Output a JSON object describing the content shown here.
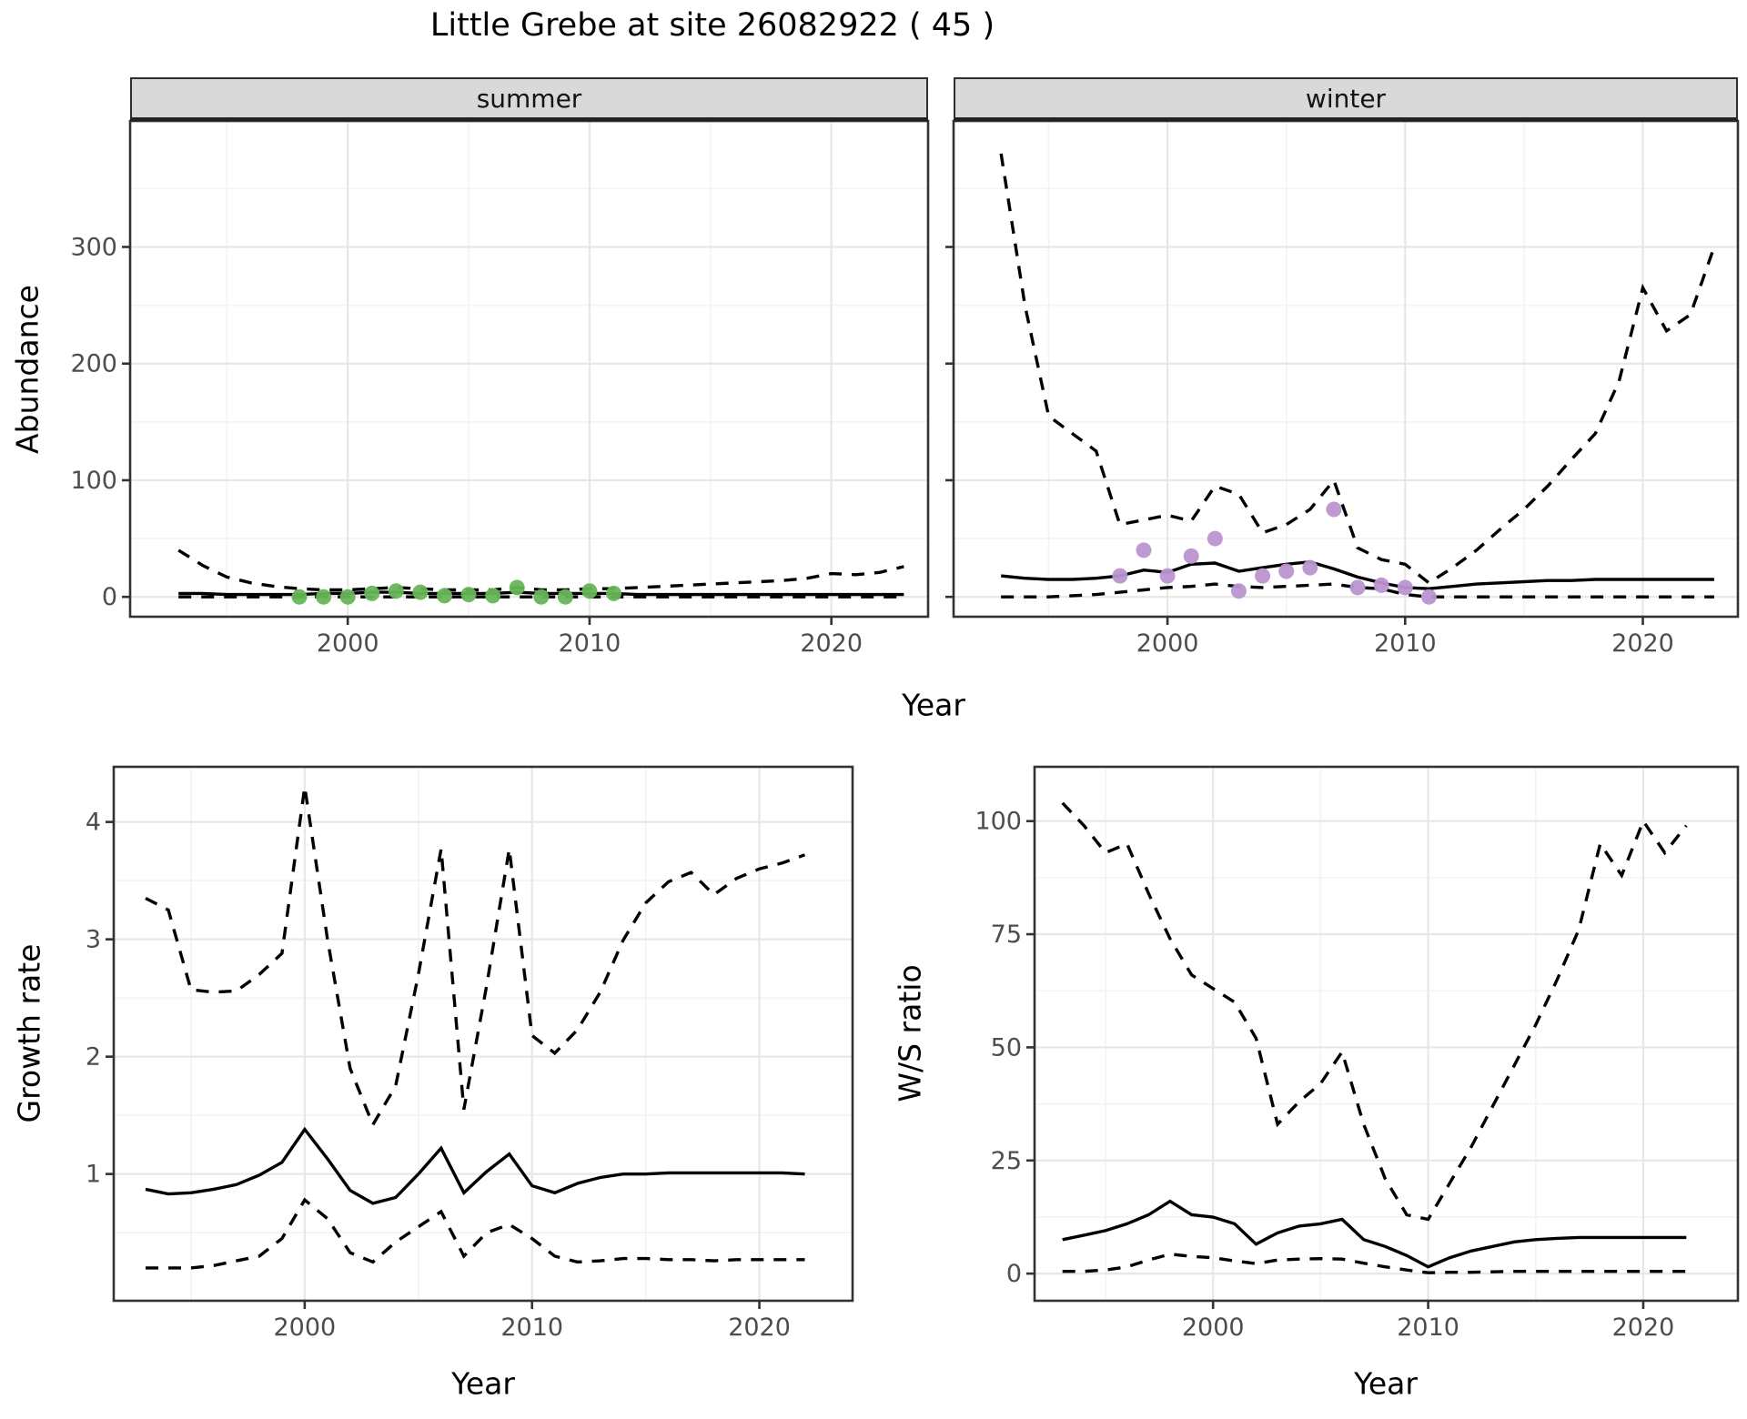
{
  "title": "Little Grebe at site 26082922 ( 45 )",
  "facets": {
    "summer_label": "summer",
    "winter_label": "winter"
  },
  "axis_titles": {
    "abundance": "Abundance",
    "growth": "Growth rate",
    "ws": "W/S ratio",
    "year_top": "Year",
    "year_bottom_left": "Year",
    "year_bottom_right": "Year"
  },
  "colors": {
    "summer_point": "#67b658",
    "winter_point": "#ba94d0",
    "line": "#000000",
    "strip_bg": "#d9d9d9",
    "grid_major": "#e7e7e7",
    "grid_minor": "#f3f3f3",
    "tick_label": "#4d4d4d",
    "panel_border": "#333333"
  },
  "chart_data": [
    {
      "id": "abundance-summer",
      "type": "line",
      "title": "summer",
      "xlabel": "Year",
      "ylabel": "Abundance",
      "xlim": [
        1991,
        2024
      ],
      "ylim": [
        -17,
        408
      ],
      "x_ticks": [
        2000,
        2010,
        2020
      ],
      "x_minor": [
        1995,
        2005,
        2015
      ],
      "y_ticks": [
        0,
        100,
        200,
        300
      ],
      "y_minor": [
        50,
        150,
        250,
        350
      ],
      "show_y_labels": true,
      "years": [
        1993,
        1994,
        1995,
        1996,
        1997,
        1998,
        1999,
        2000,
        2001,
        2002,
        2003,
        2004,
        2005,
        2006,
        2007,
        2008,
        2009,
        2010,
        2011,
        2012,
        2013,
        2014,
        2015,
        2016,
        2017,
        2018,
        2019,
        2020,
        2021,
        2022,
        2023
      ],
      "series": [
        {
          "name": "upper-ci",
          "style": "dashed",
          "values": [
            40,
            27,
            17,
            12,
            9,
            7,
            6,
            6,
            7,
            8,
            7,
            6,
            6,
            6,
            8,
            6,
            6,
            7,
            7,
            8,
            9,
            10,
            11,
            12,
            13,
            14,
            16,
            20,
            19,
            21,
            26
          ]
        },
        {
          "name": "fit",
          "style": "solid",
          "values": [
            3,
            3,
            2,
            2,
            2,
            2,
            3,
            3,
            4,
            4,
            3,
            3,
            3,
            3,
            4,
            3,
            3,
            3,
            3,
            2,
            2,
            2,
            2,
            2,
            2,
            2,
            2,
            2,
            2,
            2,
            2
          ]
        },
        {
          "name": "lower-ci",
          "style": "dashed",
          "values": [
            0,
            0,
            0,
            0,
            0,
            0,
            0,
            0,
            0,
            0,
            0,
            0,
            0,
            0,
            0,
            0,
            0,
            0,
            0,
            0,
            0,
            0,
            0,
            0,
            0,
            0,
            0,
            0,
            0,
            0,
            0
          ]
        }
      ],
      "points": {
        "name": "observed-summer",
        "color": "#67b658",
        "data": [
          [
            1998,
            0
          ],
          [
            1999,
            0
          ],
          [
            2000,
            0
          ],
          [
            2001,
            3
          ],
          [
            2002,
            5
          ],
          [
            2003,
            4
          ],
          [
            2004,
            1
          ],
          [
            2005,
            2
          ],
          [
            2006,
            1
          ],
          [
            2007,
            8
          ],
          [
            2008,
            0
          ],
          [
            2009,
            0
          ],
          [
            2010,
            5
          ],
          [
            2011,
            3
          ]
        ]
      }
    },
    {
      "id": "abundance-winter",
      "type": "line",
      "title": "winter",
      "xlabel": "Year",
      "ylabel": "Abundance",
      "xlim": [
        1991,
        2024
      ],
      "ylim": [
        -17,
        408
      ],
      "x_ticks": [
        2000,
        2010,
        2020
      ],
      "x_minor": [
        1995,
        2005,
        2015
      ],
      "y_ticks": [
        0,
        100,
        200,
        300
      ],
      "y_minor": [
        50,
        150,
        250,
        350
      ],
      "show_y_labels": false,
      "years": [
        1993,
        1994,
        1995,
        1996,
        1997,
        1998,
        1999,
        2000,
        2001,
        2002,
        2003,
        2004,
        2005,
        2006,
        2007,
        2008,
        2009,
        2010,
        2011,
        2012,
        2013,
        2014,
        2015,
        2016,
        2017,
        2018,
        2019,
        2020,
        2021,
        2022,
        2023
      ],
      "series": [
        {
          "name": "upper-ci",
          "style": "dashed",
          "values": [
            380,
            250,
            155,
            140,
            125,
            62,
            66,
            70,
            65,
            95,
            88,
            55,
            62,
            75,
            100,
            42,
            32,
            28,
            12,
            25,
            40,
            58,
            75,
            95,
            118,
            140,
            185,
            265,
            228,
            242,
            300
          ]
        },
        {
          "name": "fit",
          "style": "solid",
          "values": [
            18,
            16,
            15,
            15,
            16,
            18,
            23,
            21,
            28,
            29,
            22,
            25,
            28,
            30,
            24,
            17,
            12,
            8,
            7,
            9,
            11,
            12,
            13,
            14,
            14,
            15,
            15,
            15,
            15,
            15,
            15
          ]
        },
        {
          "name": "lower-ci",
          "style": "dashed",
          "values": [
            0,
            0,
            0,
            1,
            2,
            4,
            6,
            8,
            9,
            11,
            9,
            8,
            9,
            10,
            11,
            8,
            7,
            2,
            0,
            0,
            0,
            0,
            0,
            0,
            0,
            0,
            0,
            0,
            0,
            0,
            0
          ]
        }
      ],
      "points": {
        "name": "observed-winter",
        "color": "#ba94d0",
        "data": [
          [
            1998,
            18
          ],
          [
            1999,
            40
          ],
          [
            2000,
            18
          ],
          [
            2001,
            35
          ],
          [
            2002,
            50
          ],
          [
            2003,
            5
          ],
          [
            2004,
            18
          ],
          [
            2005,
            22
          ],
          [
            2006,
            25
          ],
          [
            2007,
            75
          ],
          [
            2008,
            8
          ],
          [
            2009,
            10
          ],
          [
            2010,
            8
          ],
          [
            2011,
            0
          ]
        ]
      }
    },
    {
      "id": "growth-rate",
      "type": "line",
      "title": "",
      "xlabel": "Year",
      "ylabel": "Growth rate",
      "xlim": [
        1991.6,
        2024.1
      ],
      "ylim": [
        -0.08,
        4.47
      ],
      "x_ticks": [
        2000,
        2010,
        2020
      ],
      "x_minor": [
        1995,
        2005,
        2015
      ],
      "y_ticks": [
        1,
        2,
        3,
        4
      ],
      "y_minor": [
        0.5,
        1.5,
        2.5,
        3.5
      ],
      "show_y_labels": true,
      "years": [
        1993,
        1994,
        1995,
        1996,
        1997,
        1998,
        1999,
        2000,
        2001,
        2002,
        2003,
        2004,
        2005,
        2006,
        2007,
        2008,
        2009,
        2010,
        2011,
        2012,
        2013,
        2014,
        2015,
        2016,
        2017,
        2018,
        2019,
        2020,
        2021,
        2022
      ],
      "series": [
        {
          "name": "upper-ci",
          "style": "dashed",
          "values": [
            3.35,
            3.25,
            2.57,
            2.55,
            2.56,
            2.7,
            2.88,
            4.3,
            3.0,
            1.9,
            1.42,
            1.75,
            2.7,
            3.77,
            1.55,
            2.6,
            3.77,
            2.18,
            2.03,
            2.23,
            2.55,
            2.99,
            3.31,
            3.49,
            3.57,
            3.38,
            3.52,
            3.6,
            3.65,
            3.72
          ]
        },
        {
          "name": "fit",
          "style": "solid",
          "values": [
            0.87,
            0.83,
            0.84,
            0.87,
            0.91,
            0.99,
            1.1,
            1.38,
            1.13,
            0.86,
            0.75,
            0.8,
            1.0,
            1.22,
            0.84,
            1.02,
            1.17,
            0.9,
            0.84,
            0.92,
            0.97,
            1.0,
            1.0,
            1.01,
            1.01,
            1.01,
            1.01,
            1.01,
            1.01,
            1.0
          ]
        },
        {
          "name": "lower-ci",
          "style": "dashed",
          "values": [
            0.2,
            0.2,
            0.2,
            0.22,
            0.26,
            0.3,
            0.45,
            0.78,
            0.62,
            0.33,
            0.25,
            0.42,
            0.55,
            0.68,
            0.3,
            0.5,
            0.57,
            0.45,
            0.3,
            0.25,
            0.26,
            0.28,
            0.28,
            0.27,
            0.27,
            0.26,
            0.27,
            0.27,
            0.27,
            0.27
          ]
        }
      ],
      "points": null
    },
    {
      "id": "ws-ratio",
      "type": "line",
      "title": "",
      "xlabel": "Year",
      "ylabel": "W/S ratio",
      "xlim": [
        1991.7,
        2024.4
      ],
      "ylim": [
        -6,
        112
      ],
      "x_ticks": [
        2000,
        2010,
        2020
      ],
      "x_minor": [
        1995,
        2005,
        2015
      ],
      "y_ticks": [
        0,
        25,
        50,
        75,
        100
      ],
      "y_minor": [
        12.5,
        37.5,
        62.5,
        87.5
      ],
      "show_y_labels": true,
      "years": [
        1993,
        1994,
        1995,
        1996,
        1997,
        1998,
        1999,
        2000,
        2001,
        2002,
        2003,
        2004,
        2005,
        2006,
        2007,
        2008,
        2009,
        2010,
        2011,
        2012,
        2013,
        2014,
        2015,
        2016,
        2017,
        2018,
        2019,
        2020,
        2021,
        2022
      ],
      "series": [
        {
          "name": "upper-ci",
          "style": "dashed",
          "values": [
            104,
            99,
            93,
            95,
            84,
            74,
            66,
            63,
            60,
            52,
            33,
            38,
            42,
            49,
            33,
            21,
            13,
            12,
            20,
            28,
            37,
            46,
            55,
            65,
            76,
            95,
            88,
            100,
            93,
            99
          ]
        },
        {
          "name": "fit",
          "style": "solid",
          "values": [
            7.5,
            8.5,
            9.5,
            11,
            13,
            16,
            13,
            12.5,
            11,
            6.5,
            9,
            10.5,
            11,
            12,
            7.5,
            6,
            4,
            1.5,
            3.5,
            5,
            6,
            7,
            7.5,
            7.8,
            8,
            8,
            8,
            8,
            8,
            8
          ]
        },
        {
          "name": "lower-ci",
          "style": "dashed",
          "values": [
            0.5,
            0.5,
            0.8,
            1.5,
            3,
            4.3,
            3.8,
            3.5,
            2.8,
            2.2,
            3,
            3.2,
            3.3,
            3.2,
            2.3,
            1.5,
            0.8,
            0.2,
            0.3,
            0.3,
            0.4,
            0.5,
            0.5,
            0.5,
            0.5,
            0.5,
            0.5,
            0.5,
            0.5,
            0.5
          ]
        }
      ],
      "points": null
    }
  ]
}
